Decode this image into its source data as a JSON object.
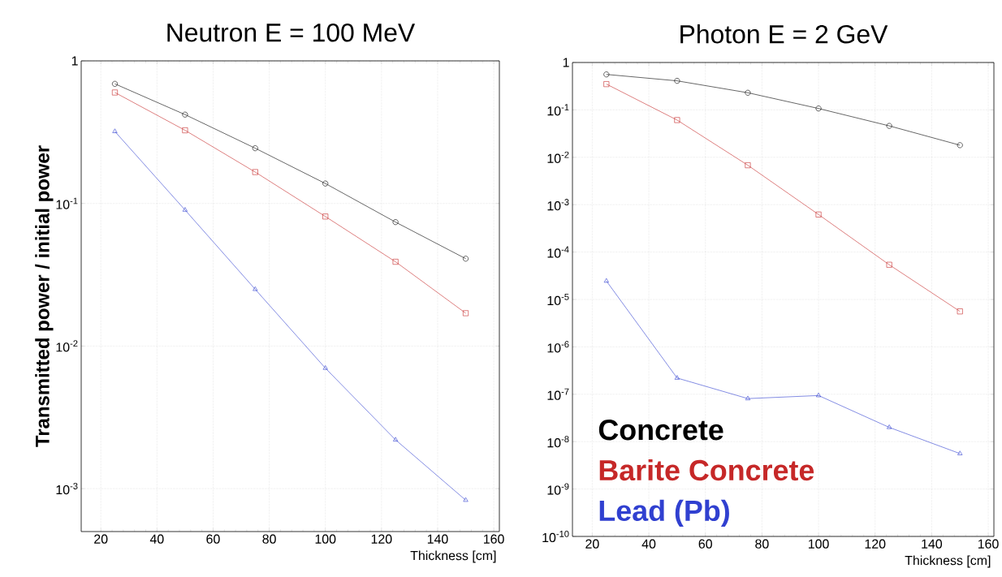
{
  "chart_data": [
    {
      "type": "line",
      "title": "Neutron E = 100 MeV",
      "xlabel": "Thickness [cm]",
      "ylabel": "Transmitted power / initial power",
      "log": "y",
      "grid": true,
      "x": [
        25,
        50,
        75,
        100,
        125,
        150
      ],
      "xlim": [
        13,
        162
      ],
      "xticks": [
        20,
        40,
        60,
        80,
        100,
        120,
        140,
        160
      ],
      "ylim": [
        0.0005,
        1
      ],
      "yticks": [
        {
          "value": 0.001,
          "label": "10$^{-3}$"
        },
        {
          "value": 0.01,
          "label": "10$^{-2}$"
        },
        {
          "value": 0.1,
          "label": "10$^{-1}$"
        },
        1
      ],
      "series": [
        {
          "color": "#000000",
          "marker": "circle",
          "values": [
            0.69,
            0.42,
            0.244,
            0.138,
            0.074,
            0.041
          ]
        },
        {
          "color": "#c62828",
          "marker": "square",
          "values": [
            0.6,
            0.326,
            0.166,
            0.081,
            0.039,
            0.017
          ]
        },
        {
          "color": "#3040d0",
          "marker": "triangle",
          "values": [
            0.32,
            0.09,
            0.025,
            0.007,
            0.0022,
            0.00083
          ]
        }
      ]
    },
    {
      "type": "line",
      "title": "Photon E = 2 GeV",
      "xlabel": "Thickness [cm]",
      "log": "y",
      "grid": true,
      "legend": "bottom left",
      "x": [
        25,
        50,
        75,
        100,
        125,
        150
      ],
      "xlim": [
        13,
        162
      ],
      "xticks": [
        20,
        40,
        60,
        80,
        100,
        120,
        140,
        160
      ],
      "ylim": [
        1e-10,
        1
      ],
      "yticks": [
        {
          "value": 1e-10,
          "label": "10$^{-10}$"
        },
        {
          "value": 1e-09,
          "label": "10$^{-9}$"
        },
        {
          "value": 1e-08,
          "label": "10$^{-8}$"
        },
        {
          "value": 1e-07,
          "label": "10$^{-7}$"
        },
        {
          "value": 1e-06,
          "label": "10$^{-6}$"
        },
        {
          "value": 1e-05,
          "label": "10$^{-5}$"
        },
        {
          "value": 0.0001,
          "label": "10$^{-4}$"
        },
        {
          "value": 0.001,
          "label": "10$^{-3}$"
        },
        {
          "value": 0.01,
          "label": "10$^{-2}$"
        },
        {
          "value": 0.1,
          "label": "10$^{-1}$"
        },
        1
      ],
      "series": [
        {
          "name": "Concrete",
          "color": "#000000",
          "marker": "circle",
          "values": [
            0.56,
            0.41,
            0.23,
            0.107,
            0.046,
            0.018
          ]
        },
        {
          "name": "Barite Concrete",
          "color": "#c62828",
          "marker": "square",
          "values": [
            0.35,
            0.061,
            0.0068,
            0.00062,
            5.4e-05,
            5.6e-06
          ]
        },
        {
          "name": "Lead (Pb)",
          "color": "#3040d0",
          "marker": "triangle",
          "values": [
            2.45e-05,
            2.2e-07,
            8.1e-08,
            9.4e-08,
            2e-08,
            5.6e-09
          ]
        }
      ]
    }
  ]
}
